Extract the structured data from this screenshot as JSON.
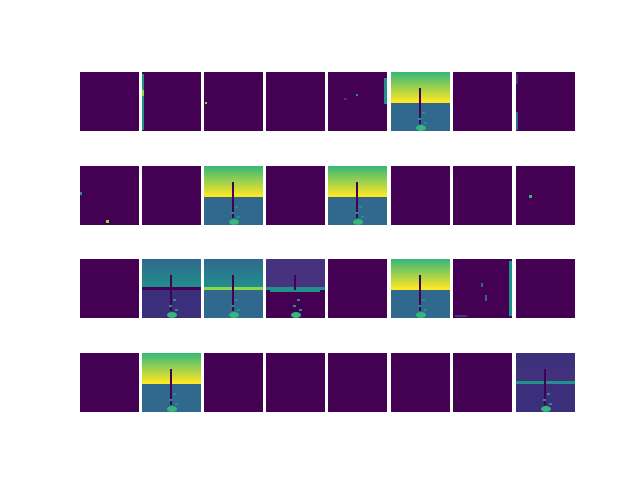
{
  "figure": {
    "grid": {
      "rows": 4,
      "cols": 8
    },
    "colormap": "viridis",
    "colors": {
      "dark": "#440154",
      "indigo": "#46327e",
      "purple": "#3b2f7b",
      "blue": "#31688e",
      "teal": "#21918c",
      "green": "#35b779",
      "lime": "#8fd744",
      "yellow": "#fde725"
    },
    "feature_maps": [
      {
        "row": 0,
        "col": 0,
        "kind": "blank"
      },
      {
        "row": 0,
        "col": 1,
        "kind": "edge-left"
      },
      {
        "row": 0,
        "col": 2,
        "kind": "dots-left"
      },
      {
        "row": 0,
        "col": 3,
        "kind": "blank"
      },
      {
        "row": 0,
        "col": 4,
        "kind": "sparse-right"
      },
      {
        "row": 0,
        "col": 5,
        "kind": "bright-scene"
      },
      {
        "row": 0,
        "col": 6,
        "kind": "blank"
      },
      {
        "row": 0,
        "col": 7,
        "kind": "edge-left-faint"
      },
      {
        "row": 1,
        "col": 0,
        "kind": "corner-dots"
      },
      {
        "row": 1,
        "col": 1,
        "kind": "blank"
      },
      {
        "row": 1,
        "col": 2,
        "kind": "bright-scene"
      },
      {
        "row": 1,
        "col": 3,
        "kind": "blank"
      },
      {
        "row": 1,
        "col": 4,
        "kind": "bright-scene"
      },
      {
        "row": 1,
        "col": 5,
        "kind": "blank"
      },
      {
        "row": 1,
        "col": 6,
        "kind": "blank"
      },
      {
        "row": 1,
        "col": 7,
        "kind": "single-dot"
      },
      {
        "row": 2,
        "col": 0,
        "kind": "blank"
      },
      {
        "row": 2,
        "col": 1,
        "kind": "mid-scene"
      },
      {
        "row": 2,
        "col": 2,
        "kind": "teal-scene"
      },
      {
        "row": 2,
        "col": 3,
        "kind": "line-scene"
      },
      {
        "row": 2,
        "col": 4,
        "kind": "blank"
      },
      {
        "row": 2,
        "col": 5,
        "kind": "bright-scene"
      },
      {
        "row": 2,
        "col": 6,
        "kind": "sparse-edges"
      },
      {
        "row": 2,
        "col": 7,
        "kind": "blank"
      },
      {
        "row": 3,
        "col": 0,
        "kind": "blank"
      },
      {
        "row": 3,
        "col": 1,
        "kind": "bright-scene"
      },
      {
        "row": 3,
        "col": 2,
        "kind": "blank"
      },
      {
        "row": 3,
        "col": 3,
        "kind": "blank"
      },
      {
        "row": 3,
        "col": 4,
        "kind": "blank"
      },
      {
        "row": 3,
        "col": 5,
        "kind": "blank"
      },
      {
        "row": 3,
        "col": 6,
        "kind": "blank"
      },
      {
        "row": 3,
        "col": 7,
        "kind": "dim-scene"
      }
    ]
  }
}
